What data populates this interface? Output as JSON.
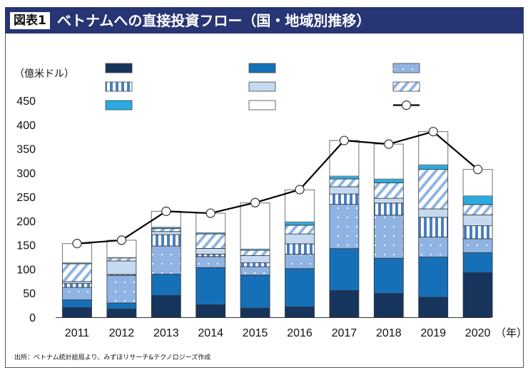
{
  "header": {
    "badge": "図表1",
    "title": "ベトナムへの直接投資フロー（国・地域別推移）"
  },
  "source": "出所：ベトナム統計総局より、みずほリサーチ&テクノロジーズ作成",
  "chart_data": {
    "type": "bar",
    "stacked": true,
    "title": "ベトナムへの直接投資フロー（国・地域別推移）",
    "ylabel": "（億米ドル）",
    "xlabel_unit": "（年）",
    "ylim": [
      0,
      450
    ],
    "yticks": [
      0,
      50,
      100,
      150,
      200,
      250,
      300,
      350,
      400,
      450
    ],
    "grid": false,
    "legend_position": "top",
    "categories": [
      "2011",
      "2012",
      "2013",
      "2014",
      "2015",
      "2016",
      "2017",
      "2018",
      "2019",
      "2020"
    ],
    "series": [
      {
        "color": "#17345c",
        "pattern": "solid",
        "values": [
          20,
          17,
          45,
          26,
          19,
          21.5,
          55.5,
          49.5,
          41.5,
          92.5
        ]
      },
      {
        "color": "#1670b8",
        "pattern": "solid",
        "values": [
          16,
          12.5,
          44.5,
          77,
          68.5,
          79.5,
          87,
          73,
          83.5,
          41.5
        ]
      },
      {
        "color": "#8fb4e3",
        "pattern": "dots",
        "values": [
          26,
          57.5,
          58.5,
          23,
          17.5,
          30,
          92,
          89.5,
          41.5,
          29
        ]
      },
      {
        "color": "#4a7fc1",
        "pattern": "vertical-stripes",
        "values": [
          8,
          2,
          23.5,
          5,
          8,
          21.5,
          21.5,
          25,
          41,
          27
        ]
      },
      {
        "color": "#c5d9f0",
        "pattern": "solid",
        "values": [
          4,
          28,
          6.5,
          12,
          15,
          20.5,
          15,
          10,
          17.5,
          22.5
        ]
      },
      {
        "color": "#8fb4e3",
        "pattern": "diagonal-stripes",
        "values": [
          37,
          6,
          6,
          30,
          11,
          18,
          16,
          32,
          82,
          21.5
        ]
      },
      {
        "color": "#29abe2",
        "pattern": "solid",
        "values": [
          2,
          1,
          3,
          2.5,
          2.5,
          7,
          6,
          8,
          9.5,
          18
        ]
      },
      {
        "color": "#ffffff",
        "pattern": "solid",
        "values": [
          40,
          36,
          33,
          40.5,
          96,
          66.5,
          74,
          72.5,
          69,
          55
        ]
      }
    ],
    "line": {
      "type": "line-with-markers",
      "color": "#000000",
      "values": [
        153,
        160,
        220,
        216,
        238,
        265,
        367,
        359.5,
        385.5,
        307
      ]
    }
  }
}
